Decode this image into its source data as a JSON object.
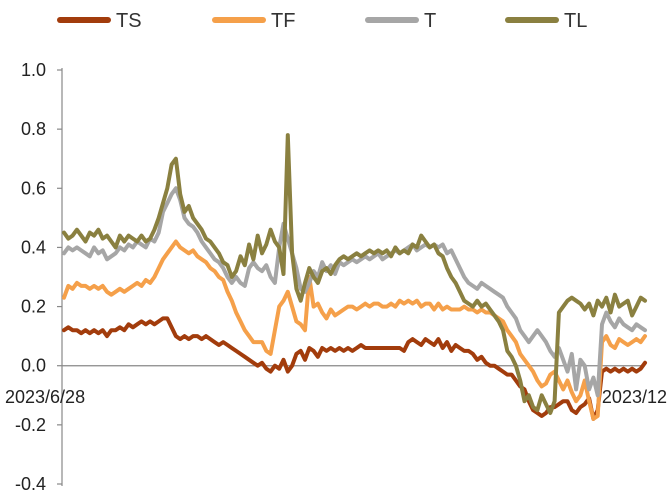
{
  "chart_data": {
    "type": "line",
    "x_start_label": "2023/6/28",
    "x_end_label": "2023/12",
    "ylim": [
      -0.4,
      1.0
    ],
    "yticks": [
      "1.0",
      "0.8",
      "0.6",
      "0.4",
      "0.2",
      "0.0",
      "-0.2",
      "-0.4"
    ],
    "legend_position": "top",
    "series": [
      {
        "name": "TS",
        "color": "#a23c0c",
        "values": [
          0.12,
          0.13,
          0.12,
          0.12,
          0.11,
          0.12,
          0.11,
          0.12,
          0.11,
          0.12,
          0.1,
          0.12,
          0.12,
          0.13,
          0.12,
          0.14,
          0.13,
          0.14,
          0.15,
          0.14,
          0.15,
          0.14,
          0.15,
          0.16,
          0.16,
          0.13,
          0.1,
          0.09,
          0.1,
          0.09,
          0.1,
          0.1,
          0.09,
          0.1,
          0.09,
          0.08,
          0.07,
          0.08,
          0.07,
          0.06,
          0.05,
          0.04,
          0.03,
          0.02,
          0.01,
          0.0,
          0.01,
          -0.01,
          -0.02,
          0.0,
          -0.01,
          0.02,
          -0.02,
          0.0,
          0.04,
          0.05,
          0.02,
          0.06,
          0.05,
          0.03,
          0.06,
          0.05,
          0.06,
          0.05,
          0.06,
          0.05,
          0.06,
          0.05,
          0.06,
          0.07,
          0.06,
          0.06,
          0.06,
          0.06,
          0.06,
          0.06,
          0.06,
          0.06,
          0.06,
          0.05,
          0.08,
          0.09,
          0.08,
          0.07,
          0.09,
          0.08,
          0.07,
          0.09,
          0.06,
          0.08,
          0.05,
          0.07,
          0.06,
          0.05,
          0.05,
          0.04,
          0.02,
          0.03,
          0.01,
          0.0,
          0.0,
          -0.01,
          -0.02,
          -0.03,
          -0.03,
          -0.05,
          -0.07,
          -0.08,
          -0.12,
          -0.15,
          -0.16,
          -0.17,
          -0.16,
          -0.14,
          -0.14,
          -0.13,
          -0.12,
          -0.12,
          -0.15,
          -0.16,
          -0.14,
          -0.13,
          -0.11,
          -0.18,
          -0.15,
          -0.02,
          -0.01,
          -0.02,
          -0.01,
          -0.02,
          -0.01,
          -0.02,
          -0.01,
          -0.02,
          -0.01,
          0.01
        ]
      },
      {
        "name": "TF",
        "color": "#f5a04a",
        "values": [
          0.23,
          0.27,
          0.26,
          0.28,
          0.27,
          0.27,
          0.26,
          0.27,
          0.26,
          0.27,
          0.25,
          0.24,
          0.25,
          0.26,
          0.25,
          0.26,
          0.27,
          0.28,
          0.27,
          0.29,
          0.28,
          0.3,
          0.33,
          0.36,
          0.38,
          0.4,
          0.42,
          0.4,
          0.39,
          0.38,
          0.39,
          0.37,
          0.36,
          0.35,
          0.33,
          0.32,
          0.3,
          0.29,
          0.25,
          0.22,
          0.18,
          0.15,
          0.12,
          0.1,
          0.08,
          0.08,
          0.08,
          0.05,
          0.04,
          0.12,
          0.2,
          0.22,
          0.25,
          0.2,
          0.15,
          0.14,
          0.12,
          0.3,
          0.2,
          0.21,
          0.18,
          0.16,
          0.19,
          0.17,
          0.18,
          0.19,
          0.2,
          0.2,
          0.19,
          0.2,
          0.21,
          0.2,
          0.21,
          0.21,
          0.2,
          0.2,
          0.21,
          0.2,
          0.22,
          0.21,
          0.22,
          0.21,
          0.22,
          0.2,
          0.21,
          0.21,
          0.19,
          0.21,
          0.19,
          0.2,
          0.19,
          0.19,
          0.19,
          0.2,
          0.19,
          0.19,
          0.18,
          0.19,
          0.18,
          0.18,
          0.17,
          0.16,
          0.15,
          0.12,
          0.1,
          0.08,
          0.04,
          0.02,
          0.0,
          -0.02,
          -0.05,
          -0.07,
          -0.06,
          -0.03,
          -0.02,
          -0.05,
          -0.08,
          -0.05,
          -0.09,
          -0.12,
          -0.1,
          -0.05,
          -0.12,
          -0.18,
          -0.17,
          0.08,
          0.1,
          0.07,
          0.06,
          0.09,
          0.08,
          0.07,
          0.08,
          0.09,
          0.08,
          0.1
        ]
      },
      {
        "name": "T",
        "color": "#a6a6a6",
        "values": [
          0.38,
          0.4,
          0.39,
          0.4,
          0.39,
          0.38,
          0.37,
          0.4,
          0.38,
          0.39,
          0.36,
          0.37,
          0.38,
          0.4,
          0.39,
          0.41,
          0.4,
          0.42,
          0.41,
          0.4,
          0.43,
          0.42,
          0.45,
          0.52,
          0.55,
          0.58,
          0.6,
          0.56,
          0.5,
          0.48,
          0.47,
          0.45,
          0.42,
          0.4,
          0.38,
          0.36,
          0.35,
          0.33,
          0.3,
          0.28,
          0.3,
          0.28,
          0.27,
          0.33,
          0.35,
          0.33,
          0.32,
          0.34,
          0.3,
          0.28,
          0.4,
          0.48,
          0.43,
          0.38,
          0.33,
          0.26,
          0.25,
          0.28,
          0.32,
          0.3,
          0.35,
          0.32,
          0.34,
          0.31,
          0.35,
          0.34,
          0.35,
          0.36,
          0.35,
          0.36,
          0.37,
          0.36,
          0.37,
          0.38,
          0.36,
          0.37,
          0.38,
          0.39,
          0.38,
          0.39,
          0.4,
          0.41,
          0.39,
          0.4,
          0.41,
          0.4,
          0.41,
          0.4,
          0.41,
          0.38,
          0.39,
          0.36,
          0.33,
          0.3,
          0.28,
          0.27,
          0.26,
          0.28,
          0.27,
          0.26,
          0.25,
          0.24,
          0.23,
          0.2,
          0.18,
          0.16,
          0.12,
          0.1,
          0.08,
          0.1,
          0.12,
          0.1,
          0.08,
          0.05,
          0.03,
          0.06,
          0.02,
          -0.02,
          0.04,
          -0.08,
          0.02,
          0.0,
          -0.08,
          -0.04,
          -0.1,
          0.14,
          0.18,
          0.15,
          0.13,
          0.16,
          0.14,
          0.13,
          0.12,
          0.14,
          0.13,
          0.12
        ]
      },
      {
        "name": "TL",
        "color": "#8a8040",
        "values": [
          0.45,
          0.43,
          0.44,
          0.46,
          0.44,
          0.42,
          0.45,
          0.44,
          0.46,
          0.43,
          0.44,
          0.42,
          0.4,
          0.44,
          0.42,
          0.44,
          0.43,
          0.42,
          0.44,
          0.42,
          0.43,
          0.46,
          0.5,
          0.55,
          0.6,
          0.68,
          0.7,
          0.58,
          0.52,
          0.54,
          0.5,
          0.48,
          0.46,
          0.43,
          0.42,
          0.4,
          0.38,
          0.35,
          0.34,
          0.3,
          0.32,
          0.37,
          0.34,
          0.41,
          0.36,
          0.44,
          0.38,
          0.41,
          0.46,
          0.42,
          0.4,
          0.31,
          0.78,
          0.38,
          0.26,
          0.22,
          0.28,
          0.33,
          0.3,
          0.28,
          0.32,
          0.33,
          0.31,
          0.34,
          0.36,
          0.37,
          0.36,
          0.37,
          0.38,
          0.37,
          0.38,
          0.39,
          0.38,
          0.39,
          0.38,
          0.39,
          0.37,
          0.4,
          0.38,
          0.39,
          0.38,
          0.41,
          0.4,
          0.44,
          0.42,
          0.4,
          0.41,
          0.38,
          0.37,
          0.33,
          0.3,
          0.28,
          0.25,
          0.22,
          0.21,
          0.2,
          0.22,
          0.2,
          0.21,
          0.19,
          0.17,
          0.15,
          0.12,
          0.05,
          0.03,
          0.0,
          -0.05,
          -0.12,
          -0.1,
          -0.14,
          -0.15,
          -0.1,
          -0.13,
          -0.16,
          -0.12,
          0.18,
          0.2,
          0.22,
          0.23,
          0.22,
          0.21,
          0.19,
          0.21,
          0.17,
          0.22,
          0.2,
          0.23,
          0.18,
          0.24,
          0.2,
          0.21,
          0.22,
          0.17,
          0.2,
          0.23,
          0.22
        ]
      }
    ]
  }
}
